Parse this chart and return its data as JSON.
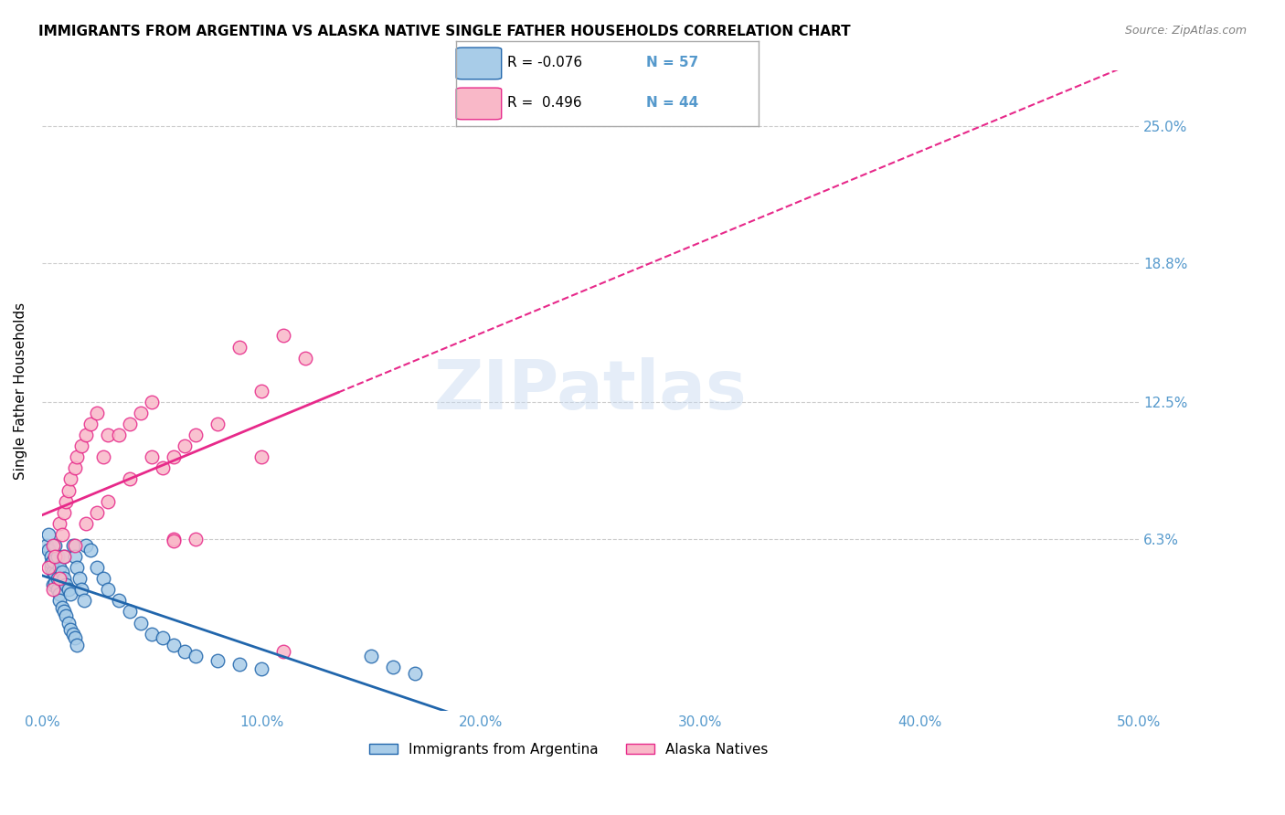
{
  "title": "IMMIGRANTS FROM ARGENTINA VS ALASKA NATIVE SINGLE FATHER HOUSEHOLDS CORRELATION CHART",
  "source": "Source: ZipAtlas.com",
  "ylabel": "Single Father Households",
  "ytick_labels": [
    "6.3%",
    "12.5%",
    "18.8%",
    "25.0%"
  ],
  "ytick_values": [
    0.063,
    0.125,
    0.188,
    0.25
  ],
  "xlim": [
    0.0,
    0.5
  ],
  "ylim": [
    -0.015,
    0.275
  ],
  "legend_r1": "R = -0.076",
  "legend_n1": "N = 57",
  "legend_r2": "R =  0.496",
  "legend_n2": "N = 44",
  "color_blue": "#a8cce8",
  "color_pink": "#f9b8c8",
  "color_blue_line": "#2166ac",
  "color_pink_line": "#e7298a",
  "color_axis": "#5599cc",
  "watermark_text": "ZIPatlas",
  "blue_scatter_x": [
    0.002,
    0.003,
    0.003,
    0.004,
    0.004,
    0.004,
    0.005,
    0.005,
    0.005,
    0.006,
    0.006,
    0.006,
    0.007,
    0.007,
    0.007,
    0.008,
    0.008,
    0.008,
    0.009,
    0.009,
    0.01,
    0.01,
    0.01,
    0.011,
    0.011,
    0.012,
    0.012,
    0.013,
    0.013,
    0.014,
    0.014,
    0.015,
    0.015,
    0.016,
    0.016,
    0.017,
    0.018,
    0.019,
    0.02,
    0.022,
    0.025,
    0.028,
    0.03,
    0.035,
    0.04,
    0.045,
    0.05,
    0.055,
    0.06,
    0.065,
    0.07,
    0.08,
    0.09,
    0.1,
    0.15,
    0.16,
    0.17
  ],
  "blue_scatter_y": [
    0.06,
    0.058,
    0.065,
    0.055,
    0.05,
    0.052,
    0.048,
    0.053,
    0.042,
    0.047,
    0.043,
    0.06,
    0.04,
    0.045,
    0.055,
    0.038,
    0.035,
    0.05,
    0.032,
    0.048,
    0.03,
    0.045,
    0.055,
    0.028,
    0.042,
    0.025,
    0.04,
    0.022,
    0.038,
    0.02,
    0.06,
    0.018,
    0.055,
    0.015,
    0.05,
    0.045,
    0.04,
    0.035,
    0.06,
    0.058,
    0.05,
    0.045,
    0.04,
    0.035,
    0.03,
    0.025,
    0.02,
    0.018,
    0.015,
    0.012,
    0.01,
    0.008,
    0.006,
    0.004,
    0.01,
    0.005,
    0.002
  ],
  "pink_scatter_x": [
    0.003,
    0.005,
    0.006,
    0.008,
    0.009,
    0.01,
    0.011,
    0.012,
    0.013,
    0.015,
    0.016,
    0.018,
    0.02,
    0.022,
    0.025,
    0.028,
    0.03,
    0.035,
    0.04,
    0.045,
    0.05,
    0.055,
    0.06,
    0.065,
    0.07,
    0.08,
    0.09,
    0.1,
    0.11,
    0.12,
    0.005,
    0.008,
    0.01,
    0.015,
    0.02,
    0.025,
    0.03,
    0.04,
    0.05,
    0.06,
    0.07,
    0.1,
    0.11,
    0.06
  ],
  "pink_scatter_y": [
    0.05,
    0.06,
    0.055,
    0.07,
    0.065,
    0.075,
    0.08,
    0.085,
    0.09,
    0.095,
    0.1,
    0.105,
    0.11,
    0.115,
    0.12,
    0.1,
    0.11,
    0.11,
    0.115,
    0.12,
    0.125,
    0.095,
    0.1,
    0.105,
    0.11,
    0.115,
    0.15,
    0.13,
    0.155,
    0.145,
    0.04,
    0.045,
    0.055,
    0.06,
    0.07,
    0.075,
    0.08,
    0.09,
    0.1,
    0.063,
    0.063,
    0.1,
    0.012,
    0.062
  ]
}
